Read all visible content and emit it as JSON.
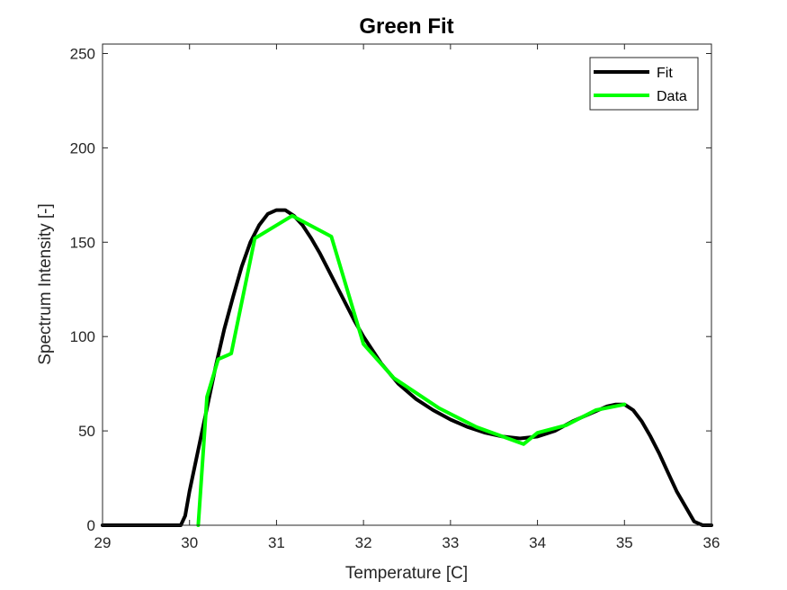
{
  "chart_data": {
    "type": "line",
    "title": "Green Fit",
    "xlabel": "Temperature [C]",
    "ylabel": "Spectrum Intensity [-]",
    "xlim": [
      29,
      36
    ],
    "ylim": [
      0,
      255
    ],
    "xticks": [
      29,
      30,
      31,
      32,
      33,
      34,
      35,
      36
    ],
    "yticks": [
      0,
      50,
      100,
      150,
      200,
      250
    ],
    "grid": false,
    "legend": "top-right",
    "series": [
      {
        "name": "Fit",
        "color": "#000000",
        "x": [
          29,
          29.5,
          29.9,
          29.95,
          30.0,
          30.1,
          30.2,
          30.3,
          30.4,
          30.5,
          30.6,
          30.7,
          30.8,
          30.9,
          31.0,
          31.1,
          31.2,
          31.3,
          31.4,
          31.5,
          31.6,
          31.7,
          31.8,
          31.9,
          32.0,
          32.2,
          32.4,
          32.6,
          32.8,
          33.0,
          33.2,
          33.4,
          33.6,
          33.8,
          34.0,
          34.2,
          34.4,
          34.6,
          34.8,
          34.9,
          35.0,
          35.1,
          35.2,
          35.3,
          35.4,
          35.5,
          35.6,
          35.7,
          35.8,
          35.85,
          35.9,
          36.0
        ],
        "y": [
          0,
          0,
          0,
          5,
          18,
          40,
          62,
          84,
          104,
          121,
          137,
          150,
          159,
          165,
          167,
          167,
          164,
          159,
          152,
          144,
          135,
          126,
          117,
          108,
          100,
          86,
          75,
          67,
          61,
          56,
          52,
          49,
          47,
          46,
          47,
          50,
          55,
          59,
          63,
          64,
          64,
          61,
          55,
          47,
          38,
          28,
          18,
          10,
          2,
          1,
          0,
          0
        ]
      },
      {
        "name": "Data",
        "color": "#00ff00",
        "x": [
          30.1,
          30.2,
          30.33,
          30.48,
          30.75,
          31.18,
          31.63,
          32.0,
          32.35,
          32.87,
          33.3,
          33.84,
          34.0,
          34.33,
          34.67,
          35.0
        ],
        "y": [
          0,
          68,
          88,
          91,
          152,
          164,
          153,
          96,
          78,
          62,
          52,
          43,
          49,
          53,
          61,
          64
        ]
      }
    ]
  }
}
